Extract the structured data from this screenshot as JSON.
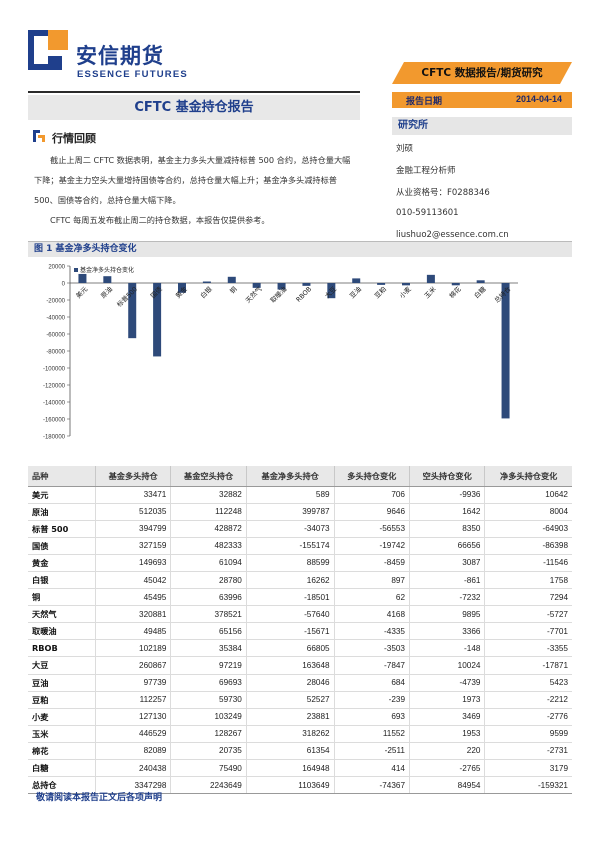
{
  "brand": {
    "name_cn": "安信期货",
    "name_en": "ESSENCE FUTURES",
    "primary_color": "#1f3f8c",
    "accent_color": "#f2992e"
  },
  "header": {
    "banner": "CFTC 数据报告/期货研究",
    "title": "CFTC 基金持仓报告",
    "date_label": "报告日期",
    "date_value": "2014-04-14"
  },
  "institute": {
    "heading": "研究所",
    "analyst": "刘硕",
    "role": "金融工程分析师",
    "license": "从业资格号：F0288346",
    "phone": "010-59113601",
    "email": "liushuo2@essence.com.cn"
  },
  "review": {
    "heading": "行情回顾",
    "paragraphs": [
      "截止上周二 CFTC 数据表明，基金主力多头大量减持标普 500 合约，总持仓量大幅下降；基金主力空头大量增持国债等合约，总持仓量大幅上升；基金净多头减持标普 500、国债等合约，总持仓量大幅下降。",
      "CFTC 每周五发布截止周二的持仓数据，本报告仅提供参考。"
    ]
  },
  "figure": {
    "caption": "图 1 基金净多头持仓变化"
  },
  "chart_data": {
    "type": "bar",
    "legend": "基金净多头持仓变化",
    "legend_position": "top-left",
    "categories": [
      "美元",
      "原油",
      "标普500",
      "国债",
      "黄金",
      "白银",
      "铜",
      "天然气",
      "取暖油",
      "RBOB",
      "大豆",
      "豆油",
      "豆粕",
      "小麦",
      "玉米",
      "棉花",
      "白糖",
      "总持仓"
    ],
    "values": [
      10642,
      8004,
      -64903,
      -86398,
      -11546,
      1758,
      7294,
      -5727,
      -7701,
      -3355,
      -17871,
      5423,
      -2212,
      -2776,
      9599,
      -2731,
      3179,
      -159321
    ],
    "ylim": [
      -180000,
      20000
    ],
    "yticks": [
      "20000",
      "0",
      "-20000",
      "-40000",
      "-60000",
      "-80000",
      "-100000",
      "-120000",
      "-140000",
      "-160000",
      "-180000"
    ],
    "bar_color": "#2e4a7a"
  },
  "table": {
    "headers": [
      "品种",
      "基金多头持仓",
      "基金空头持仓",
      "基金净多头持仓",
      "多头持仓变化",
      "空头持仓变化",
      "净多头持仓变化"
    ],
    "rows": [
      [
        "美元",
        "33471",
        "32882",
        "589",
        "706",
        "-9936",
        "10642"
      ],
      [
        "原油",
        "512035",
        "112248",
        "399787",
        "9646",
        "1642",
        "8004"
      ],
      [
        "标普 500",
        "394799",
        "428872",
        "-34073",
        "-56553",
        "8350",
        "-64903"
      ],
      [
        "国债",
        "327159",
        "482333",
        "-155174",
        "-19742",
        "66656",
        "-86398"
      ],
      [
        "黄金",
        "149693",
        "61094",
        "88599",
        "-8459",
        "3087",
        "-11546"
      ],
      [
        "白银",
        "45042",
        "28780",
        "16262",
        "897",
        "-861",
        "1758"
      ],
      [
        "铜",
        "45495",
        "63996",
        "-18501",
        "62",
        "-7232",
        "7294"
      ],
      [
        "天然气",
        "320881",
        "378521",
        "-57640",
        "4168",
        "9895",
        "-5727"
      ],
      [
        "取暖油",
        "49485",
        "65156",
        "-15671",
        "-4335",
        "3366",
        "-7701"
      ],
      [
        "RBOB",
        "102189",
        "35384",
        "66805",
        "-3503",
        "-148",
        "-3355"
      ],
      [
        "大豆",
        "260867",
        "97219",
        "163648",
        "-7847",
        "10024",
        "-17871"
      ],
      [
        "豆油",
        "97739",
        "69693",
        "28046",
        "684",
        "-4739",
        "5423"
      ],
      [
        "豆粕",
        "112257",
        "59730",
        "52527",
        "-239",
        "1973",
        "-2212"
      ],
      [
        "小麦",
        "127130",
        "103249",
        "23881",
        "693",
        "3469",
        "-2776"
      ],
      [
        "玉米",
        "446529",
        "128267",
        "318262",
        "11552",
        "1953",
        "9599"
      ],
      [
        "棉花",
        "82089",
        "20735",
        "61354",
        "-2511",
        "220",
        "-2731"
      ],
      [
        "白糖",
        "240438",
        "75490",
        "164948",
        "414",
        "-2765",
        "3179"
      ],
      [
        "总持仓",
        "3347298",
        "2243649",
        "1103649",
        "-74367",
        "84954",
        "-159321"
      ]
    ]
  },
  "footer": "敬请阅读本报告正文后各项声明"
}
